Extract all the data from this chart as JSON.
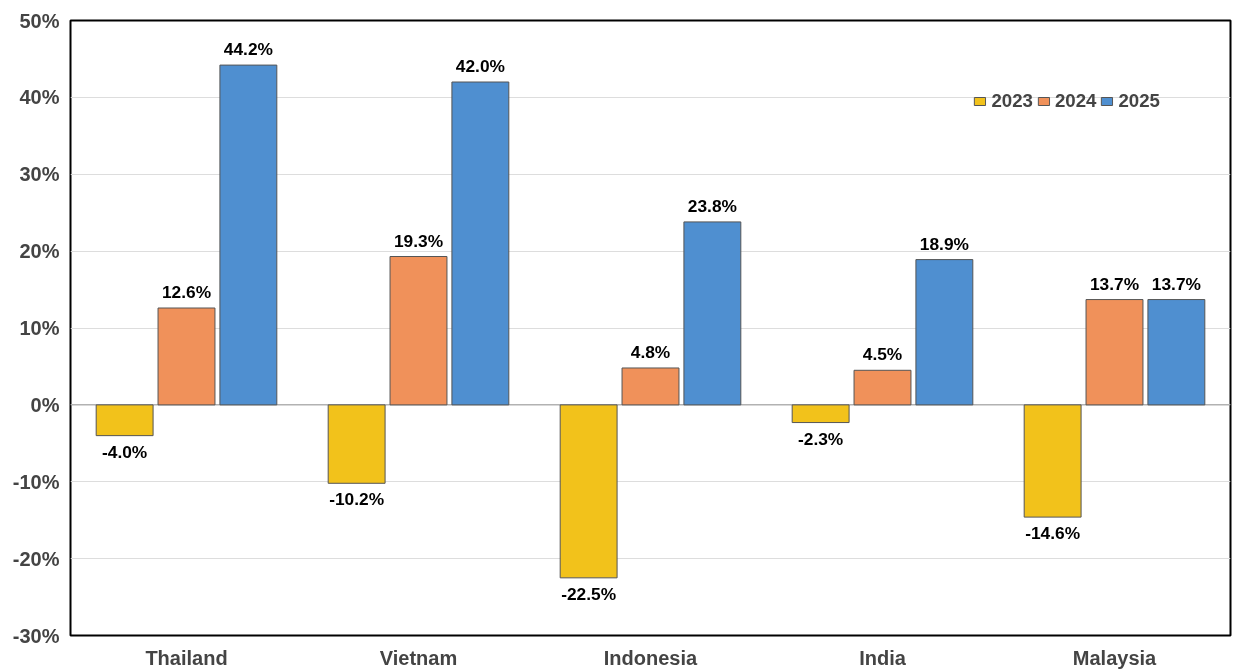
{
  "chart_data": {
    "type": "bar",
    "categories": [
      "Thailand",
      "Vietnam",
      "Indonesia",
      "India",
      "Malaysia"
    ],
    "series": [
      {
        "name": "2023",
        "color": "#f2c21b",
        "values": [
          -4.0,
          -10.2,
          -22.5,
          -2.3,
          -14.6
        ]
      },
      {
        "name": "2024",
        "color": "#f0915a",
        "values": [
          12.6,
          19.3,
          4.8,
          4.5,
          13.7
        ]
      },
      {
        "name": "2025",
        "color": "#4f8fd0",
        "values": [
          44.2,
          42.0,
          23.8,
          18.9,
          13.7
        ]
      }
    ],
    "value_labels": [
      [
        "-4.0%",
        "-10.2%",
        "-22.5%",
        "-2.3%",
        "-14.6%"
      ],
      [
        "12.6%",
        "19.3%",
        "4.8%",
        "4.5%",
        "13.7%"
      ],
      [
        "44.2%",
        "42.0%",
        "23.8%",
        "18.9%",
        "13.7%"
      ]
    ],
    "ylim": [
      -30,
      50
    ],
    "yticks": [
      {
        "value": -30,
        "label": "-30%"
      },
      {
        "value": -20,
        "label": "-20%"
      },
      {
        "value": -10,
        "label": "-10%"
      },
      {
        "value": 0,
        "label": "0%"
      },
      {
        "value": 10,
        "label": "10%"
      },
      {
        "value": 20,
        "label": "20%"
      },
      {
        "value": 30,
        "label": "30%"
      },
      {
        "value": 40,
        "label": "40%"
      },
      {
        "value": 50,
        "label": "50%"
      }
    ],
    "grid": "y",
    "legend": "top right"
  }
}
